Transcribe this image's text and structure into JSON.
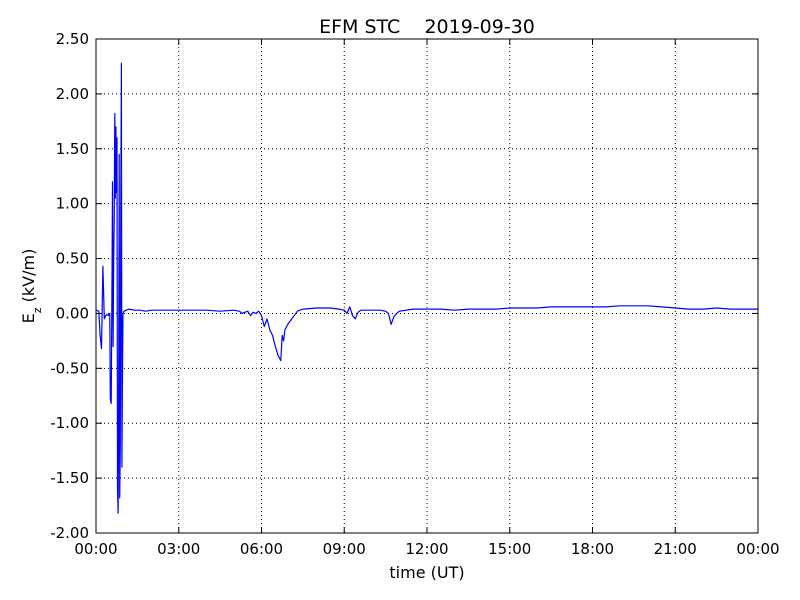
{
  "chart_data": {
    "type": "line",
    "title": "EFM STC    2019-09-30",
    "xlabel": "time (UT)",
    "ylabel_main": "E",
    "ylabel_sub": "z",
    "ylabel_tail": " (kV/m)",
    "ylim": [
      -2.0,
      2.5
    ],
    "xlim_hours": [
      0,
      24
    ],
    "grid": true,
    "line_color": "#0000ff",
    "x_ticks": [
      {
        "hour": 0,
        "label": "00:00"
      },
      {
        "hour": 3,
        "label": "03:00"
      },
      {
        "hour": 6,
        "label": "06:00"
      },
      {
        "hour": 9,
        "label": "09:00"
      },
      {
        "hour": 12,
        "label": "12:00"
      },
      {
        "hour": 15,
        "label": "15:00"
      },
      {
        "hour": 18,
        "label": "18:00"
      },
      {
        "hour": 21,
        "label": "21:00"
      },
      {
        "hour": 24,
        "label": "00:00"
      }
    ],
    "y_ticks": [
      {
        "value": 2.5,
        "label": "2.50"
      },
      {
        "value": 2.0,
        "label": "2.00"
      },
      {
        "value": 1.5,
        "label": "1.50"
      },
      {
        "value": 1.0,
        "label": "1.00"
      },
      {
        "value": 0.5,
        "label": "0.50"
      },
      {
        "value": 0.0,
        "label": "0.00"
      },
      {
        "value": -0.5,
        "label": "-0.50"
      },
      {
        "value": -1.0,
        "label": "-1.00"
      },
      {
        "value": -1.5,
        "label": "-1.50"
      },
      {
        "value": -2.0,
        "label": "-2.00"
      }
    ],
    "series": [
      {
        "points": [
          [
            0.0,
            0.03
          ],
          [
            0.1,
            0.02
          ],
          [
            0.15,
            -0.2
          ],
          [
            0.2,
            -0.32
          ],
          [
            0.25,
            0.43
          ],
          [
            0.3,
            -0.05
          ],
          [
            0.35,
            -0.02
          ],
          [
            0.4,
            -0.01
          ],
          [
            0.45,
            -0.02
          ],
          [
            0.5,
            0.0
          ],
          [
            0.52,
            -0.78
          ],
          [
            0.55,
            -0.82
          ],
          [
            0.58,
            0.3
          ],
          [
            0.6,
            1.2
          ],
          [
            0.62,
            -0.3
          ],
          [
            0.64,
            0.5
          ],
          [
            0.66,
            0.85
          ],
          [
            0.68,
            1.82
          ],
          [
            0.7,
            1.05
          ],
          [
            0.72,
            1.7
          ],
          [
            0.74,
            1.1
          ],
          [
            0.76,
            1.6
          ],
          [
            0.78,
            -1.6
          ],
          [
            0.8,
            -1.82
          ],
          [
            0.82,
            -1.0
          ],
          [
            0.84,
            1.45
          ],
          [
            0.86,
            -1.68
          ],
          [
            0.88,
            -1.2
          ],
          [
            0.9,
            1.0
          ],
          [
            0.92,
            2.28
          ],
          [
            0.94,
            -1.4
          ],
          [
            0.96,
            -0.5
          ],
          [
            0.98,
            0.0
          ],
          [
            1.02,
            0.02
          ],
          [
            1.1,
            0.03
          ],
          [
            1.2,
            0.04
          ],
          [
            1.4,
            0.03
          ],
          [
            1.6,
            0.03
          ],
          [
            1.8,
            0.02
          ],
          [
            2.0,
            0.03
          ],
          [
            2.5,
            0.03
          ],
          [
            3.0,
            0.03
          ],
          [
            3.5,
            0.03
          ],
          [
            4.0,
            0.03
          ],
          [
            4.5,
            0.02
          ],
          [
            5.0,
            0.03
          ],
          [
            5.2,
            0.02
          ],
          [
            5.3,
            0.0
          ],
          [
            5.5,
            0.02
          ],
          [
            5.6,
            -0.02
          ],
          [
            5.7,
            0.01
          ],
          [
            5.8,
            0.0
          ],
          [
            5.9,
            0.02
          ],
          [
            6.0,
            -0.02
          ],
          [
            6.1,
            -0.12
          ],
          [
            6.2,
            -0.05
          ],
          [
            6.3,
            -0.15
          ],
          [
            6.4,
            -0.2
          ],
          [
            6.5,
            -0.3
          ],
          [
            6.6,
            -0.38
          ],
          [
            6.7,
            -0.43
          ],
          [
            6.75,
            -0.2
          ],
          [
            6.8,
            -0.25
          ],
          [
            6.85,
            -0.15
          ],
          [
            6.95,
            -0.1
          ],
          [
            7.1,
            -0.05
          ],
          [
            7.3,
            0.02
          ],
          [
            7.5,
            0.04
          ],
          [
            8.0,
            0.05
          ],
          [
            8.5,
            0.05
          ],
          [
            8.8,
            0.04
          ],
          [
            9.0,
            0.03
          ],
          [
            9.1,
            0.0
          ],
          [
            9.2,
            0.06
          ],
          [
            9.3,
            -0.02
          ],
          [
            9.4,
            -0.05
          ],
          [
            9.5,
            0.01
          ],
          [
            9.6,
            0.03
          ],
          [
            10.0,
            0.03
          ],
          [
            10.3,
            0.03
          ],
          [
            10.5,
            0.02
          ],
          [
            10.6,
            0.0
          ],
          [
            10.7,
            -0.1
          ],
          [
            10.8,
            -0.03
          ],
          [
            10.9,
            0.0
          ],
          [
            11.0,
            0.02
          ],
          [
            11.5,
            0.04
          ],
          [
            12.0,
            0.04
          ],
          [
            12.5,
            0.04
          ],
          [
            13.0,
            0.03
          ],
          [
            13.5,
            0.04
          ],
          [
            14.0,
            0.04
          ],
          [
            14.5,
            0.04
          ],
          [
            15.0,
            0.05
          ],
          [
            15.5,
            0.05
          ],
          [
            16.0,
            0.05
          ],
          [
            16.5,
            0.06
          ],
          [
            17.0,
            0.06
          ],
          [
            17.5,
            0.06
          ],
          [
            18.0,
            0.06
          ],
          [
            18.5,
            0.06
          ],
          [
            19.0,
            0.07
          ],
          [
            19.5,
            0.07
          ],
          [
            20.0,
            0.07
          ],
          [
            20.5,
            0.06
          ],
          [
            21.0,
            0.05
          ],
          [
            21.5,
            0.04
          ],
          [
            22.0,
            0.04
          ],
          [
            22.5,
            0.05
          ],
          [
            23.0,
            0.04
          ],
          [
            23.5,
            0.04
          ],
          [
            24.0,
            0.04
          ]
        ]
      }
    ]
  }
}
